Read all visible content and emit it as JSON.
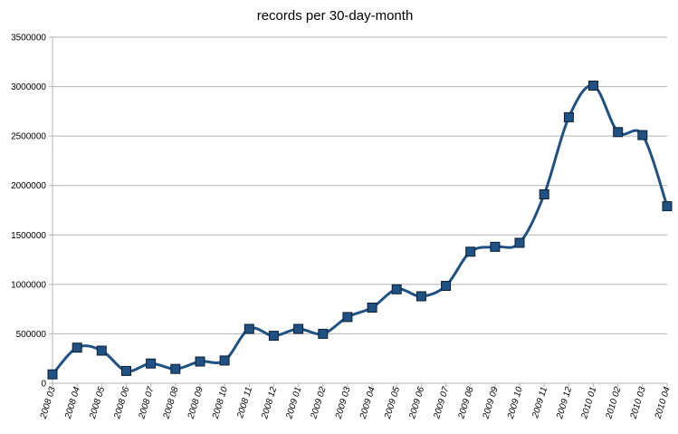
{
  "chart_data": {
    "type": "line",
    "title": "records per 30-day-month",
    "xlabel": "",
    "ylabel": "",
    "ylim": [
      0,
      3500000
    ],
    "yticks": [
      0,
      500000,
      1000000,
      1500000,
      2000000,
      2500000,
      3000000,
      3500000
    ],
    "grid": "horizontal",
    "legend": "none",
    "categories": [
      "2008 03",
      "2008 04",
      "2008 05",
      "2008 06",
      "2008 07",
      "2008 08",
      "2008 09",
      "2008 10",
      "2008 11",
      "2008 12",
      "2009 01",
      "2009 02",
      "2009 03",
      "2009 04",
      "2009 05",
      "2009 06",
      "2009 07",
      "2009 08",
      "2009 09",
      "2009 10",
      "2009 11",
      "2009 12",
      "2010 01",
      "2010 02",
      "2010 03",
      "2010 04"
    ],
    "series": [
      {
        "values": [
          90000,
          360000,
          330000,
          125000,
          200000,
          145000,
          220000,
          230000,
          550000,
          480000,
          550000,
          500000,
          670000,
          765000,
          950000,
          880000,
          985000,
          1330000,
          1380000,
          1420000,
          1910000,
          2690000,
          3010000,
          2540000,
          2510000,
          1790000
        ],
        "marker": "square",
        "smooth": true,
        "line_color": "#1f5184",
        "marker_color": "#1f5184"
      }
    ]
  }
}
